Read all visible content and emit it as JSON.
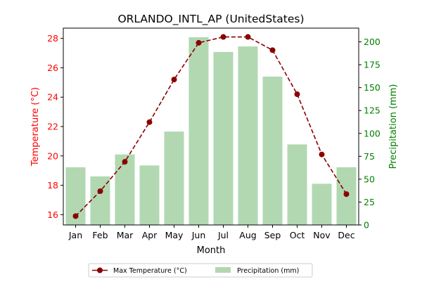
{
  "chart_data": {
    "type": "bar+line",
    "title": "ORLANDO_INTL_AP (UnitedStates)",
    "xlabel": "Month",
    "ylabel_left": "Temperature (°C)",
    "ylabel_right": "Precipitation (mm)",
    "categories": [
      "Jan",
      "Feb",
      "Mar",
      "Apr",
      "May",
      "Jun",
      "Jul",
      "Aug",
      "Sep",
      "Oct",
      "Nov",
      "Dec"
    ],
    "series": [
      {
        "name": "Max Temperature (°C)",
        "kind": "line",
        "axis": "left",
        "color": "#8b0000",
        "values": [
          15.9,
          17.6,
          19.6,
          22.3,
          25.2,
          27.7,
          28.1,
          28.1,
          27.2,
          24.2,
          20.1,
          17.4
        ]
      },
      {
        "name": "Precipitation (mm)",
        "kind": "bar",
        "axis": "right",
        "color": "#b2d8b2",
        "values": [
          63,
          53,
          77,
          65,
          102,
          205,
          189,
          195,
          162,
          88,
          45,
          63
        ]
      }
    ],
    "ylim_left": [
      15.3,
      28.7
    ],
    "yticks_left": [
      16,
      18,
      20,
      22,
      24,
      26,
      28
    ],
    "ylim_right": [
      0,
      215
    ],
    "yticks_right": [
      0,
      25,
      50,
      75,
      100,
      125,
      150,
      175,
      200
    ],
    "left_axis_color": "#ff0000",
    "right_axis_color": "#008000",
    "legend_position": "bottom-center",
    "grid": false
  }
}
